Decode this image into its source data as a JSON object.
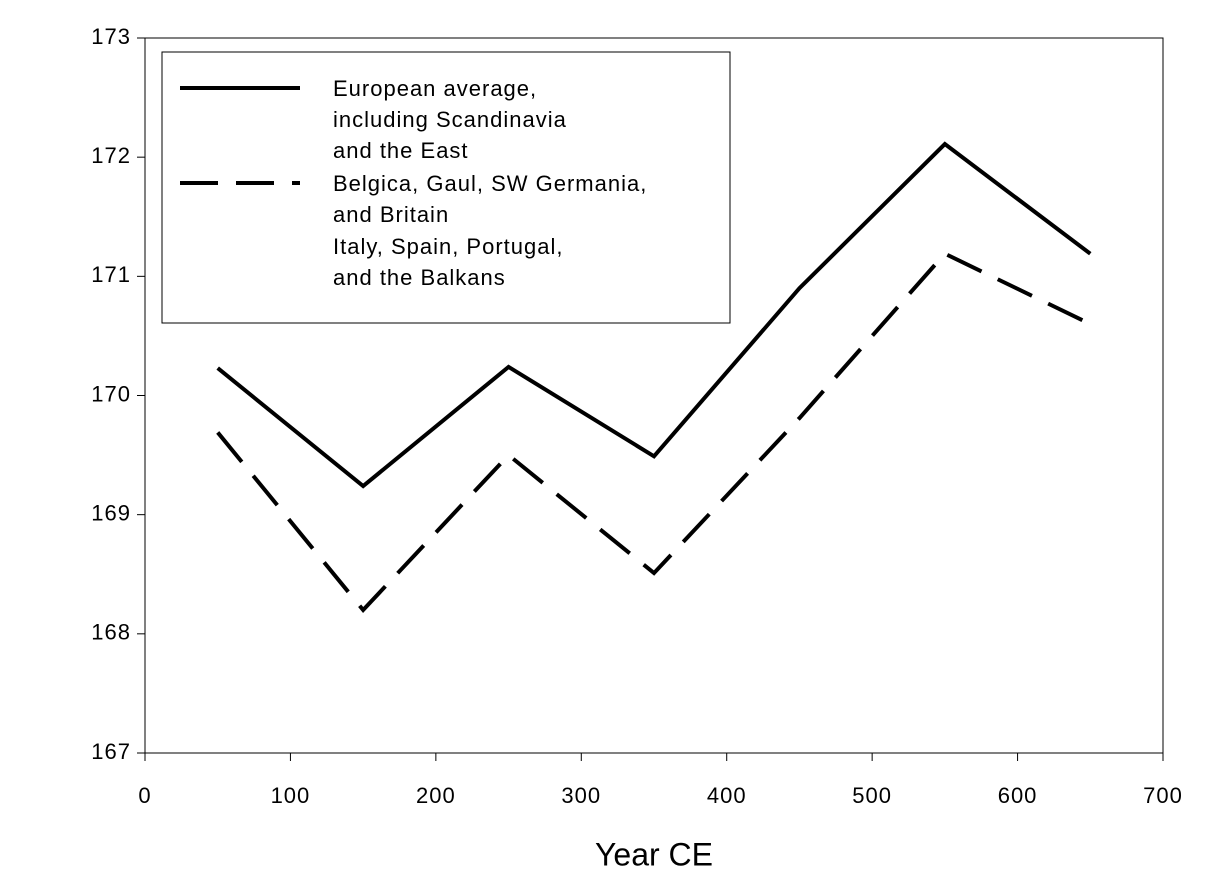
{
  "chart_data": {
    "type": "line",
    "xlabel": "Year CE",
    "x": [
      50,
      150,
      250,
      350,
      450,
      550,
      650
    ],
    "series": [
      {
        "name": "European average,\nincluding Scandinavia\nand the East",
        "color": "#000000",
        "dash": "solid",
        "values": [
          170.23,
          169.24,
          170.24,
          169.49,
          170.9,
          172.11,
          171.19
        ]
      },
      {
        "name": "Belgica, Gaul, SW Germania,\nand Britain",
        "color": "#000000",
        "dash": "dashed",
        "values": [
          169.69,
          168.2,
          169.5,
          168.51,
          169.81,
          171.19,
          170.6
        ]
      },
      {
        "name": "Italy, Spain, Portugal,\nand the Balkans",
        "color": "#ffffff",
        "dash": "solid",
        "values": [
          null,
          null,
          null,
          null,
          null,
          null,
          null
        ]
      }
    ],
    "xlim": [
      0,
      700
    ],
    "xticks": [
      0,
      100,
      200,
      300,
      400,
      500,
      600,
      700
    ],
    "ylim": [
      167,
      173
    ],
    "yticks": [
      167,
      168,
      169,
      170,
      171,
      172,
      173
    ],
    "legend": "upper left",
    "grid": false
  }
}
